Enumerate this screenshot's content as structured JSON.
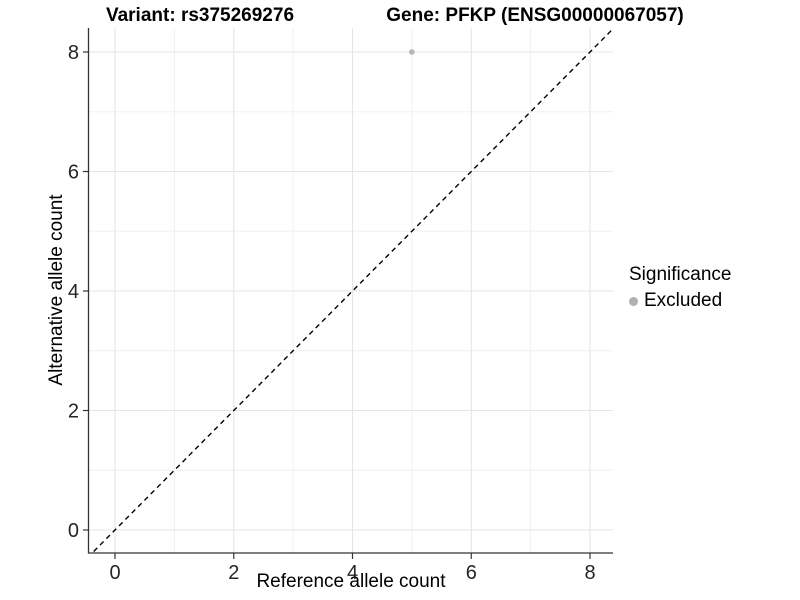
{
  "chart_data": {
    "type": "scatter",
    "title_left": "Variant: rs375269276",
    "title_right": "Gene: PFKP (ENSG00000067057)",
    "xlabel": "Reference allele count",
    "ylabel": "Alternative allele count",
    "xlim": [
      -0.4,
      8.4
    ],
    "ylim": [
      -0.4,
      8.4
    ],
    "x_major_ticks": [
      0,
      2,
      4,
      6,
      8
    ],
    "y_major_ticks": [
      0,
      2,
      4,
      6,
      8
    ],
    "x_minor_ticks": [
      1,
      3,
      5,
      7
    ],
    "y_minor_ticks": [
      1,
      3,
      5,
      7
    ],
    "grid": true,
    "series": [
      {
        "name": "Excluded",
        "color": "#b5b5b5",
        "marker": "circle",
        "points": [
          {
            "x": 5,
            "y": 8
          }
        ]
      }
    ],
    "reference_line": {
      "type": "identity",
      "slope": 1,
      "intercept": 0,
      "style": "dashed",
      "color": "#000000"
    },
    "legend": {
      "title": "Significance",
      "position": "right",
      "entries": [
        {
          "label": "Excluded",
          "color": "#b0b0b0",
          "marker": "circle"
        }
      ]
    },
    "colors": {
      "background": "#ffffff",
      "grid_major": "#e5e5e5",
      "grid_minor": "#f0f0f0",
      "axis_line": "#333333",
      "tick_mark": "#333333",
      "tick_text": "#262626",
      "title_text": "#000000"
    }
  }
}
